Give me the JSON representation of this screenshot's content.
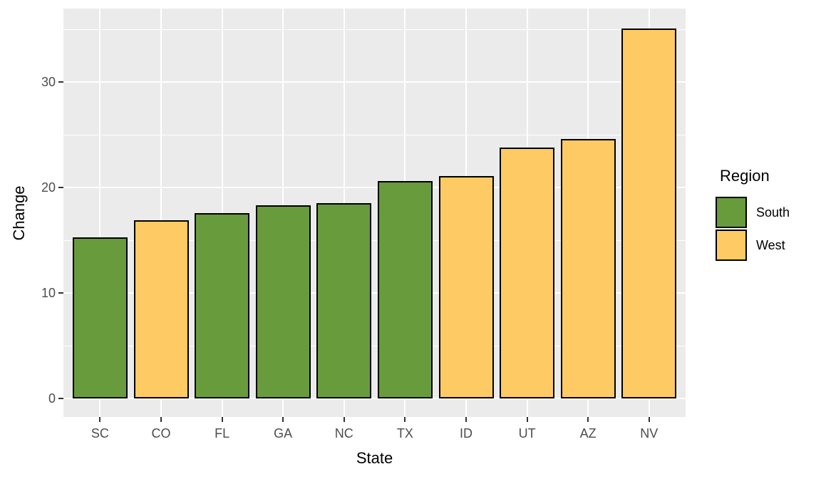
{
  "chart_data": {
    "type": "bar",
    "title": "",
    "xlabel": "State",
    "ylabel": "Change",
    "categories": [
      "SC",
      "CO",
      "FL",
      "GA",
      "NC",
      "TX",
      "ID",
      "UT",
      "AZ",
      "NV"
    ],
    "values": [
      15.3,
      16.9,
      17.6,
      18.3,
      18.5,
      20.6,
      21.1,
      23.8,
      24.6,
      35.1
    ],
    "regions": [
      "South",
      "West",
      "South",
      "South",
      "South",
      "South",
      "West",
      "West",
      "West",
      "West"
    ],
    "region_colors": {
      "South": "#689B3C",
      "West": "#FDCA64"
    },
    "bar_border_color": "#000000",
    "ylim": [
      -1.8,
      36.9
    ],
    "yticks": [
      0,
      10,
      20,
      30
    ],
    "ytick_labels": [
      "0",
      "10",
      "20",
      "30"
    ],
    "minor_gridlines": [
      5,
      15,
      25,
      35
    ],
    "grid": true,
    "panel_background": "#EBEBEB",
    "gridline_color": "#FFFFFF",
    "tick_label_color": "#4D4D4D",
    "axis_title_color": "#000000",
    "legend": {
      "title": "Region",
      "position": "right",
      "entries": [
        {
          "label": "South",
          "color": "#689B3C"
        },
        {
          "label": "West",
          "color": "#FDCA64"
        }
      ]
    }
  }
}
